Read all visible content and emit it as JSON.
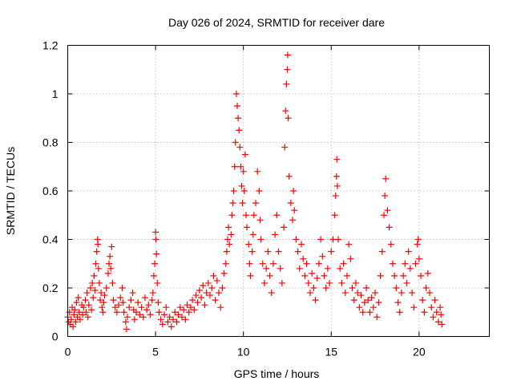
{
  "chart_data": {
    "type": "scatter",
    "title": "Day 026 of 2024, SRMTID for receiver dare",
    "xlabel": "GPS time / hours",
    "ylabel": "SRMTID / TECUs",
    "xlim": [
      0,
      24
    ],
    "ylim": [
      0,
      1.2
    ],
    "xticks": [
      0,
      5,
      10,
      15,
      20
    ],
    "xtick_labels": [
      "0",
      "5",
      "10",
      "15",
      "20"
    ],
    "yticks": [
      0,
      0.2,
      0.4,
      0.6,
      0.8,
      1.0,
      1.2
    ],
    "ytick_labels": [
      "0",
      "0.2",
      "0.4",
      "0.6",
      "0.8",
      "1",
      "1.2"
    ],
    "grid": true,
    "marker": "plus",
    "color": "#ff0000",
    "series": [
      {
        "name": "SRMTID",
        "points": [
          [
            0.0,
            0.08
          ],
          [
            0.05,
            0.06
          ],
          [
            0.1,
            0.1
          ],
          [
            0.15,
            0.05
          ],
          [
            0.2,
            0.07
          ],
          [
            0.25,
            0.12
          ],
          [
            0.3,
            0.04
          ],
          [
            0.35,
            0.09
          ],
          [
            0.4,
            0.11
          ],
          [
            0.45,
            0.06
          ],
          [
            0.5,
            0.14
          ],
          [
            0.55,
            0.08
          ],
          [
            0.6,
            0.16
          ],
          [
            0.65,
            0.1
          ],
          [
            0.7,
            0.07
          ],
          [
            0.8,
            0.13
          ],
          [
            0.85,
            0.09
          ],
          [
            0.9,
            0.12
          ],
          [
            1.0,
            0.15
          ],
          [
            1.05,
            0.1
          ],
          [
            1.1,
            0.18
          ],
          [
            1.15,
            0.08
          ],
          [
            1.2,
            0.13
          ],
          [
            1.3,
            0.2
          ],
          [
            1.35,
            0.11
          ],
          [
            1.4,
            0.22
          ],
          [
            1.45,
            0.16
          ],
          [
            1.5,
            0.25
          ],
          [
            1.55,
            0.19
          ],
          [
            1.6,
            0.3
          ],
          [
            1.65,
            0.35
          ],
          [
            1.7,
            0.4
          ],
          [
            1.72,
            0.38
          ],
          [
            1.75,
            0.28
          ],
          [
            1.8,
            0.22
          ],
          [
            1.85,
            0.15
          ],
          [
            1.9,
            0.18
          ],
          [
            1.95,
            0.12
          ],
          [
            2.0,
            0.1
          ],
          [
            2.05,
            0.14
          ],
          [
            2.1,
            0.17
          ],
          [
            2.2,
            0.2
          ],
          [
            2.3,
            0.26
          ],
          [
            2.35,
            0.3
          ],
          [
            2.4,
            0.33
          ],
          [
            2.45,
            0.28
          ],
          [
            2.5,
            0.37
          ],
          [
            2.55,
            0.22
          ],
          [
            2.6,
            0.15
          ],
          [
            2.7,
            0.12
          ],
          [
            2.8,
            0.1
          ],
          [
            2.9,
            0.13
          ],
          [
            3.0,
            0.16
          ],
          [
            3.1,
            0.2
          ],
          [
            3.15,
            0.14
          ],
          [
            3.2,
            0.1
          ],
          [
            3.3,
            0.06
          ],
          [
            3.35,
            0.03
          ],
          [
            3.4,
            0.08
          ],
          [
            3.5,
            0.12
          ],
          [
            3.6,
            0.15
          ],
          [
            3.7,
            0.18
          ],
          [
            3.75,
            0.11
          ],
          [
            3.8,
            0.07
          ],
          [
            3.9,
            0.1
          ],
          [
            4.0,
            0.14
          ],
          [
            4.1,
            0.09
          ],
          [
            4.2,
            0.12
          ],
          [
            4.3,
            0.08
          ],
          [
            4.4,
            0.16
          ],
          [
            4.5,
            0.11
          ],
          [
            4.6,
            0.13
          ],
          [
            4.7,
            0.09
          ],
          [
            4.8,
            0.15
          ],
          [
            4.85,
            0.18
          ],
          [
            4.9,
            0.25
          ],
          [
            4.95,
            0.3
          ],
          [
            5.0,
            0.43
          ],
          [
            5.02,
            0.4
          ],
          [
            5.05,
            0.34
          ],
          [
            5.1,
            0.22
          ],
          [
            5.15,
            0.14
          ],
          [
            5.2,
            0.1
          ],
          [
            5.3,
            0.07
          ],
          [
            5.4,
            0.05
          ],
          [
            5.5,
            0.09
          ],
          [
            5.6,
            0.12
          ],
          [
            5.7,
            0.06
          ],
          [
            5.8,
            0.08
          ],
          [
            5.9,
            0.04
          ],
          [
            6.0,
            0.07
          ],
          [
            6.1,
            0.1
          ],
          [
            6.2,
            0.06
          ],
          [
            6.3,
            0.09
          ],
          [
            6.4,
            0.12
          ],
          [
            6.5,
            0.08
          ],
          [
            6.6,
            0.11
          ],
          [
            6.7,
            0.07
          ],
          [
            6.8,
            0.13
          ],
          [
            6.9,
            0.1
          ],
          [
            7.0,
            0.12
          ],
          [
            7.1,
            0.15
          ],
          [
            7.2,
            0.11
          ],
          [
            7.3,
            0.17
          ],
          [
            7.4,
            0.14
          ],
          [
            7.5,
            0.19
          ],
          [
            7.6,
            0.16
          ],
          [
            7.7,
            0.21
          ],
          [
            7.8,
            0.13
          ],
          [
            7.9,
            0.18
          ],
          [
            8.0,
            0.22
          ],
          [
            8.1,
            0.17
          ],
          [
            8.2,
            0.2
          ],
          [
            8.3,
            0.25
          ],
          [
            8.4,
            0.15
          ],
          [
            8.5,
            0.23
          ],
          [
            8.6,
            0.18
          ],
          [
            8.7,
            0.12
          ],
          [
            8.8,
            0.2
          ],
          [
            8.9,
            0.26
          ],
          [
            9.0,
            0.3
          ],
          [
            9.05,
            0.35
          ],
          [
            9.1,
            0.4
          ],
          [
            9.15,
            0.45
          ],
          [
            9.2,
            0.38
          ],
          [
            9.3,
            0.42
          ],
          [
            9.35,
            0.5
          ],
          [
            9.4,
            0.55
          ],
          [
            9.45,
            0.6
          ],
          [
            9.5,
            0.7
          ],
          [
            9.55,
            0.8
          ],
          [
            9.6,
            1.0
          ],
          [
            9.65,
            0.95
          ],
          [
            9.7,
            0.9
          ],
          [
            9.75,
            0.85
          ],
          [
            9.8,
            0.78
          ],
          [
            9.85,
            0.7
          ],
          [
            9.9,
            0.62
          ],
          [
            9.95,
            0.55
          ],
          [
            10.0,
            0.68
          ],
          [
            10.05,
            0.6
          ],
          [
            10.1,
            0.75
          ],
          [
            10.15,
            0.5
          ],
          [
            10.2,
            0.45
          ],
          [
            10.3,
            0.38
          ],
          [
            10.35,
            0.3
          ],
          [
            10.4,
            0.25
          ],
          [
            10.5,
            0.35
          ],
          [
            10.55,
            0.42
          ],
          [
            10.6,
            0.5
          ],
          [
            10.7,
            0.55
          ],
          [
            10.8,
            0.68
          ],
          [
            10.9,
            0.6
          ],
          [
            10.95,
            0.48
          ],
          [
            11.0,
            0.4
          ],
          [
            11.1,
            0.3
          ],
          [
            11.2,
            0.22
          ],
          [
            11.3,
            0.28
          ],
          [
            11.4,
            0.35
          ],
          [
            11.5,
            0.25
          ],
          [
            11.6,
            0.18
          ],
          [
            11.7,
            0.3
          ],
          [
            11.8,
            0.42
          ],
          [
            11.9,
            0.5
          ],
          [
            12.0,
            0.35
          ],
          [
            12.1,
            0.28
          ],
          [
            12.2,
            0.22
          ],
          [
            12.3,
            0.45
          ],
          [
            12.35,
            0.78
          ],
          [
            12.4,
            0.93
          ],
          [
            12.45,
            1.04
          ],
          [
            12.5,
            1.1
          ],
          [
            12.52,
            1.16
          ],
          [
            12.55,
            0.9
          ],
          [
            12.6,
            0.66
          ],
          [
            12.7,
            0.55
          ],
          [
            12.8,
            0.48
          ],
          [
            12.85,
            0.6
          ],
          [
            12.9,
            0.52
          ],
          [
            13.0,
            0.4
          ],
          [
            13.1,
            0.35
          ],
          [
            13.2,
            0.28
          ],
          [
            13.3,
            0.38
          ],
          [
            13.4,
            0.32
          ],
          [
            13.5,
            0.25
          ],
          [
            13.6,
            0.3
          ],
          [
            13.7,
            0.22
          ],
          [
            13.8,
            0.18
          ],
          [
            13.9,
            0.26
          ],
          [
            14.0,
            0.2
          ],
          [
            14.1,
            0.15
          ],
          [
            14.2,
            0.24
          ],
          [
            14.3,
            0.3
          ],
          [
            14.4,
            0.4
          ],
          [
            14.5,
            0.33
          ],
          [
            14.6,
            0.25
          ],
          [
            14.7,
            0.2
          ],
          [
            14.8,
            0.28
          ],
          [
            14.9,
            0.22
          ],
          [
            15.0,
            0.35
          ],
          [
            15.1,
            0.4
          ],
          [
            15.2,
            0.5
          ],
          [
            15.25,
            0.58
          ],
          [
            15.3,
            0.66
          ],
          [
            15.32,
            0.73
          ],
          [
            15.35,
            0.62
          ],
          [
            15.4,
            0.4
          ],
          [
            15.5,
            0.28
          ],
          [
            15.6,
            0.22
          ],
          [
            15.7,
            0.3
          ],
          [
            15.8,
            0.18
          ],
          [
            15.9,
            0.25
          ],
          [
            16.0,
            0.38
          ],
          [
            16.1,
            0.32
          ],
          [
            16.2,
            0.2
          ],
          [
            16.3,
            0.15
          ],
          [
            16.4,
            0.22
          ],
          [
            16.5,
            0.18
          ],
          [
            16.6,
            0.12
          ],
          [
            16.7,
            0.17
          ],
          [
            16.8,
            0.1
          ],
          [
            16.9,
            0.14
          ],
          [
            17.0,
            0.2
          ],
          [
            17.1,
            0.15
          ],
          [
            17.2,
            0.1
          ],
          [
            17.3,
            0.16
          ],
          [
            17.4,
            0.12
          ],
          [
            17.5,
            0.18
          ],
          [
            17.6,
            0.08
          ],
          [
            17.7,
            0.14
          ],
          [
            17.8,
            0.25
          ],
          [
            17.9,
            0.35
          ],
          [
            18.0,
            0.5
          ],
          [
            18.05,
            0.58
          ],
          [
            18.1,
            0.65
          ],
          [
            18.2,
            0.52
          ],
          [
            18.3,
            0.45
          ],
          [
            18.4,
            0.38
          ],
          [
            18.5,
            0.3
          ],
          [
            18.6,
            0.25
          ],
          [
            18.7,
            0.2
          ],
          [
            18.8,
            0.14
          ],
          [
            18.9,
            0.1
          ],
          [
            19.0,
            0.18
          ],
          [
            19.1,
            0.25
          ],
          [
            19.2,
            0.3
          ],
          [
            19.3,
            0.22
          ],
          [
            19.4,
            0.35
          ],
          [
            19.5,
            0.28
          ],
          [
            19.6,
            0.18
          ],
          [
            19.7,
            0.12
          ],
          [
            19.8,
            0.3
          ],
          [
            19.9,
            0.38
          ],
          [
            19.95,
            0.4
          ],
          [
            20.0,
            0.32
          ],
          [
            20.1,
            0.25
          ],
          [
            20.2,
            0.15
          ],
          [
            20.3,
            0.1
          ],
          [
            20.4,
            0.2
          ],
          [
            20.5,
            0.26
          ],
          [
            20.6,
            0.18
          ],
          [
            20.7,
            0.12
          ],
          [
            20.8,
            0.08
          ],
          [
            20.9,
            0.15
          ],
          [
            21.0,
            0.1
          ],
          [
            21.1,
            0.06
          ],
          [
            21.2,
            0.12
          ],
          [
            21.25,
            0.09
          ],
          [
            21.3,
            0.05
          ]
        ]
      }
    ]
  }
}
